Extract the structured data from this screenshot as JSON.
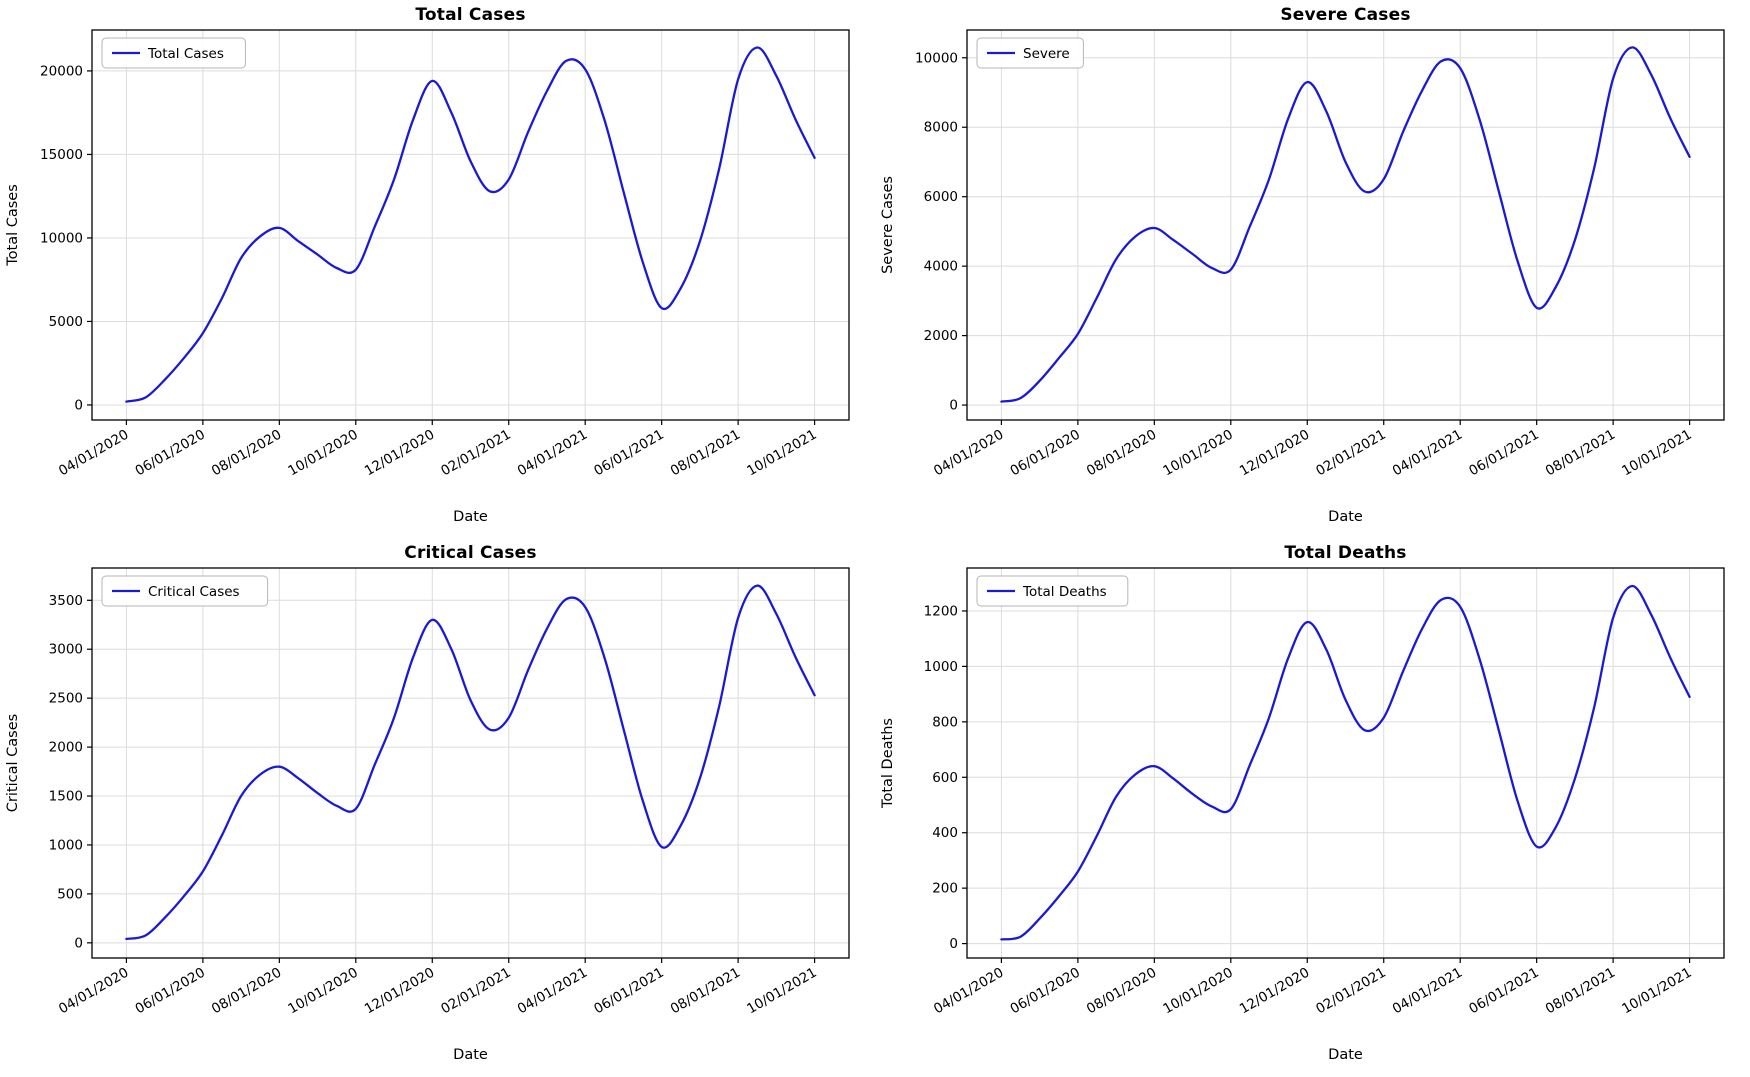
{
  "figure": {
    "background": "#ffffff",
    "line_color": "#1a1ad6",
    "grid_color": "#dcdcdc",
    "axis_color": "#000000",
    "legend_border": "#b5b5b5",
    "x_label": "Date",
    "x_tick_positions": [
      0,
      2,
      4,
      6,
      8,
      10,
      12,
      14,
      16,
      18
    ],
    "x_tick_labels": [
      "04/01/2020",
      "06/01/2020",
      "08/01/2020",
      "10/01/2020",
      "12/01/2020",
      "02/01/2021",
      "04/01/2021",
      "06/01/2021",
      "08/01/2021",
      "10/01/2021"
    ],
    "x_months": [
      0,
      0.5,
      1,
      1.5,
      2,
      2.5,
      3,
      3.5,
      4,
      4.5,
      5,
      5.5,
      6,
      6.5,
      7,
      7.5,
      8,
      8.5,
      9,
      9.5,
      10,
      10.5,
      11,
      11.5,
      12,
      12.5,
      13,
      13.5,
      14,
      14.5,
      15,
      15.5,
      16,
      16.5,
      17,
      17.5,
      18
    ]
  },
  "chart_data": [
    {
      "type": "line",
      "title": "Total Cases",
      "ylabel": "Total Cases",
      "xlabel": "Date",
      "legend": "Total Cases",
      "legend_position": "upper left",
      "grid": true,
      "ylim": [
        -900,
        22450
      ],
      "y_ticks": [
        0,
        5000,
        10000,
        15000,
        20000
      ],
      "values": [
        200,
        450,
        1500,
        2800,
        4300,
        6400,
        8800,
        10100,
        10600,
        9800,
        9000,
        8200,
        8100,
        10700,
        13500,
        17100,
        19400,
        17500,
        14600,
        12800,
        13500,
        16300,
        18800,
        20600,
        20100,
        17100,
        12800,
        8600,
        5800,
        7000,
        9800,
        14100,
        19500,
        21400,
        19700,
        17100,
        14800
      ]
    },
    {
      "type": "line",
      "title": "Severe Cases",
      "ylabel": "Severe Cases",
      "xlabel": "Date",
      "legend": "Severe",
      "legend_position": "upper left",
      "grid": true,
      "ylim": [
        -430,
        10800
      ],
      "y_ticks": [
        0,
        2000,
        4000,
        6000,
        8000,
        10000
      ],
      "values": [
        100,
        200,
        700,
        1350,
        2050,
        3100,
        4200,
        4850,
        5100,
        4750,
        4350,
        3950,
        3900,
        5150,
        6500,
        8250,
        9300,
        8450,
        7000,
        6150,
        6500,
        7850,
        9050,
        9900,
        9700,
        8250,
        6200,
        4150,
        2800,
        3400,
        4750,
        6800,
        9400,
        10300,
        9500,
        8250,
        7150
      ]
    },
    {
      "type": "line",
      "title": "Critical Cases",
      "ylabel": "Critical Cases",
      "xlabel": "Date",
      "legend": "Critical Cases",
      "legend_position": "upper left",
      "grid": true,
      "ylim": [
        -155,
        3830
      ],
      "y_ticks": [
        0,
        500,
        1000,
        1500,
        2000,
        2500,
        3000,
        3500
      ],
      "values": [
        40,
        75,
        255,
        475,
        730,
        1100,
        1500,
        1720,
        1800,
        1680,
        1530,
        1400,
        1370,
        1825,
        2300,
        2920,
        3300,
        3000,
        2480,
        2180,
        2300,
        2780,
        3210,
        3510,
        3430,
        2920,
        2190,
        1460,
        980,
        1200,
        1680,
        2410,
        3320,
        3650,
        3360,
        2920,
        2530
      ]
    },
    {
      "type": "line",
      "title": "Total Deaths",
      "ylabel": "Total Deaths",
      "xlabel": "Date",
      "legend": "Total Deaths",
      "legend_position": "upper left",
      "grid": true,
      "ylim": [
        -52,
        1355
      ],
      "y_ticks": [
        0,
        200,
        400,
        600,
        800,
        1000,
        1200
      ],
      "values": [
        15,
        25,
        90,
        170,
        260,
        390,
        530,
        610,
        640,
        595,
        540,
        495,
        485,
        645,
        815,
        1030,
        1160,
        1060,
        880,
        770,
        815,
        980,
        1135,
        1240,
        1215,
        1030,
        775,
        515,
        350,
        420,
        595,
        850,
        1175,
        1290,
        1185,
        1030,
        890
      ]
    }
  ]
}
